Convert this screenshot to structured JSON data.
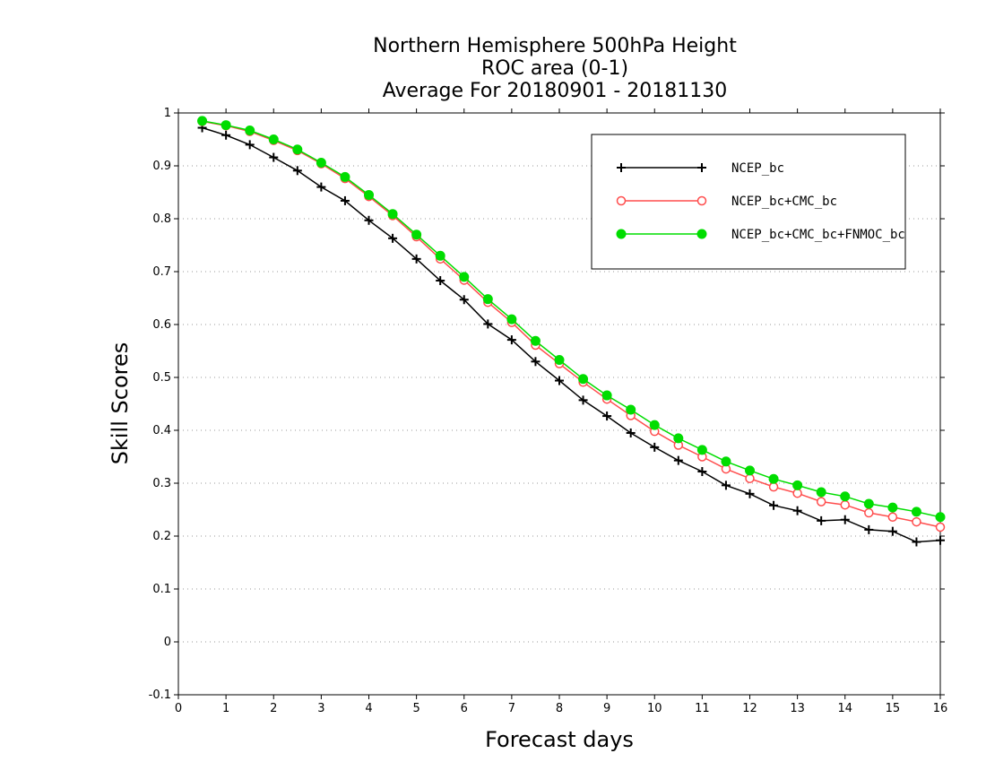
{
  "chart_data": {
    "type": "line",
    "title": [
      "Northern Hemisphere 500hPa Height",
      "ROC area (0-1)",
      "Average For 20180901 - 20181130"
    ],
    "xlabel": "Forecast days",
    "ylabel": "Skill Scores",
    "xlim": [
      0,
      16
    ],
    "ylim": [
      -0.1,
      1
    ],
    "x_ticks": [
      "0",
      "1",
      "2",
      "3",
      "4",
      "5",
      "6",
      "7",
      "8",
      "9",
      "10",
      "11",
      "12",
      "13",
      "14",
      "15",
      "16"
    ],
    "y_ticks": [
      "1",
      "0.9",
      "0.8",
      "0.7",
      "0.6",
      "0.5",
      "0.4",
      "0.3",
      "0.2",
      "0.1",
      "0",
      "-0.1"
    ],
    "grid": "horizontal-dotted",
    "legend_position": "top-right",
    "x": [
      0.5,
      1,
      1.5,
      2,
      2.5,
      3,
      3.5,
      4,
      4.5,
      5,
      5.5,
      6,
      6.5,
      7,
      7.5,
      8,
      8.5,
      9,
      9.5,
      10,
      10.5,
      11,
      11.5,
      12,
      12.5,
      13,
      13.5,
      14,
      14.5,
      15,
      15.5,
      16
    ],
    "series": [
      {
        "name": "NCEP_bc",
        "color": "#000000",
        "marker": "plus",
        "values": [
          0.972,
          0.958,
          0.94,
          0.916,
          0.891,
          0.86,
          0.834,
          0.797,
          0.763,
          0.724,
          0.683,
          0.647,
          0.601,
          0.571,
          0.53,
          0.494,
          0.457,
          0.427,
          0.395,
          0.368,
          0.343,
          0.322,
          0.296,
          0.28,
          0.258,
          0.248,
          0.229,
          0.231,
          0.212,
          0.209,
          0.189,
          0.192
        ]
      },
      {
        "name": "NCEP_bc+CMC_bc",
        "color": "#ff4d4d",
        "marker": "open-circle",
        "values": [
          0.984,
          0.976,
          0.965,
          0.948,
          0.929,
          0.904,
          0.876,
          0.842,
          0.806,
          0.766,
          0.724,
          0.684,
          0.642,
          0.604,
          0.561,
          0.526,
          0.491,
          0.459,
          0.428,
          0.398,
          0.372,
          0.35,
          0.327,
          0.309,
          0.293,
          0.281,
          0.265,
          0.259,
          0.244,
          0.236,
          0.227,
          0.217
        ]
      },
      {
        "name": "NCEP_bc+CMC_bc+FNMOC_bc",
        "color": "#00dd00",
        "marker": "filled-circle",
        "values": [
          0.985,
          0.977,
          0.967,
          0.95,
          0.931,
          0.906,
          0.879,
          0.845,
          0.809,
          0.77,
          0.73,
          0.69,
          0.648,
          0.61,
          0.569,
          0.533,
          0.497,
          0.466,
          0.439,
          0.41,
          0.385,
          0.363,
          0.341,
          0.324,
          0.308,
          0.296,
          0.283,
          0.275,
          0.261,
          0.254,
          0.246,
          0.236
        ]
      }
    ]
  }
}
